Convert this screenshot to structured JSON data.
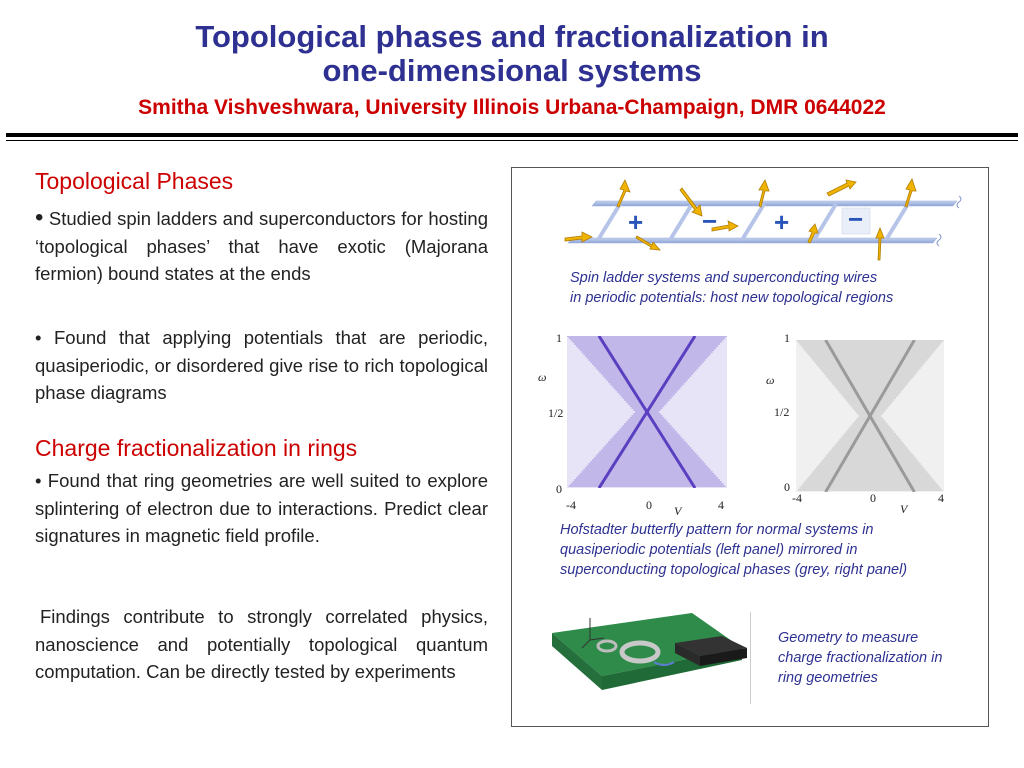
{
  "header": {
    "title_line1": "Topological phases and fractionalization in",
    "title_line2": "one-dimensional systems",
    "subtitle": "Smitha Vishveshwara, University Illinois Urbana-Champaign, DMR 0644022"
  },
  "left": {
    "section1_heading": "Topological Phases",
    "bullet_symbol": "•",
    "bullet1": "Studied spin ladders and superconductors for hosting ‘topological phases’ that have exotic (Majorana fermion) bound states at the ends",
    "bullet2": "Found that applying potentials that are periodic, quasiperiodic, or disordered give rise to rich topological phase diagrams",
    "section2_heading": "Charge fractionalization in rings",
    "bullet3": "Found that ring geometries are well suited to explore splintering of electron due to interactions. Predict clear signatures in magnetic field profile.",
    "findings": "Findings contribute to strongly correlated physics, nanoscience and potentially topological quantum computation. Can be directly tested by experiments"
  },
  "figure": {
    "ladder_signs": [
      "+",
      "−",
      "+",
      "−"
    ],
    "caption1_line1": "Spin ladder systems and superconducting wires",
    "caption1_line2": "in periodic potentials: host new topological regions",
    "plot_left": {
      "y_top": "1",
      "y_mid": "1/2",
      "y_bottom": "0",
      "y_label": "ω",
      "x_ticks": [
        "-4",
        "0",
        "4"
      ],
      "x_label": "V",
      "color": "#5a3fc0"
    },
    "plot_right": {
      "y_top": "1",
      "y_mid": "1/2",
      "y_bottom": "0",
      "y_label": "ω",
      "x_ticks": [
        "-4",
        "0",
        "4"
      ],
      "x_label": "V",
      "color": "#9a9a9a"
    },
    "caption2_line1": "Hofstadter butterfly pattern for normal systems in",
    "caption2_line2": "quasiperiodic potentials (left panel) mirrored in",
    "caption2_line3": "superconducting topological phases (grey, right panel)",
    "caption3_line1": "Geometry to measure",
    "caption3_line2": "charge fractionalization in",
    "caption3_line3": "ring geometries"
  }
}
